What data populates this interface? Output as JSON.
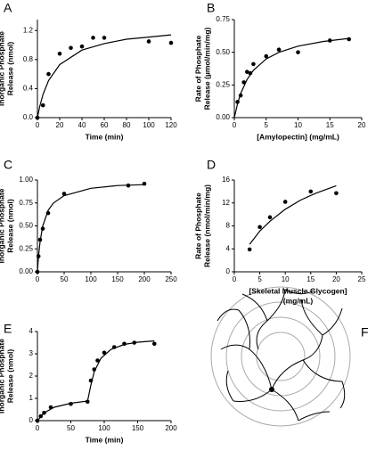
{
  "chart_data": [
    {
      "type": "scatter",
      "label": "A",
      "xlabel": [
        "Time (min)"
      ],
      "ylabel": [
        "Inorganic Phosphate",
        "Release (nmol)"
      ],
      "x": [
        0,
        5,
        10,
        20,
        30,
        40,
        50,
        60,
        100,
        120
      ],
      "values": [
        0,
        0.17,
        0.6,
        0.88,
        0.96,
        0.98,
        1.1,
        1.1,
        1.05,
        1.03
      ],
      "fit": {
        "x": [
          0,
          2,
          5,
          10,
          20,
          40,
          60,
          80,
          100,
          120
        ],
        "values": [
          0,
          0.15,
          0.32,
          0.51,
          0.73,
          0.93,
          1.02,
          1.08,
          1.11,
          1.14
        ]
      },
      "xlim": [
        0,
        120
      ],
      "ylim": [
        0,
        1.35
      ],
      "xticks": [
        0,
        20,
        40,
        60,
        80,
        100,
        120
      ],
      "yticks": [
        {
          "value": 0,
          "label": "0.0"
        },
        0.4,
        0.8,
        1.2
      ]
    },
    {
      "type": "scatter",
      "label": "B",
      "xlabel": [
        "[Amylopectin] (mg/mL)"
      ],
      "ylabel": [
        "Rate of Phosphate",
        "Release (µmol/min/mg)"
      ],
      "x": [
        0.5,
        1,
        1.5,
        2,
        2.5,
        3,
        5,
        7,
        10,
        15,
        18
      ],
      "values": [
        0.12,
        0.17,
        0.27,
        0.35,
        0.34,
        0.41,
        0.47,
        0.52,
        0.5,
        0.59,
        0.6
      ],
      "fit": {
        "x": [
          0,
          0.5,
          1,
          2,
          3,
          5,
          7,
          10,
          14,
          18
        ],
        "values": [
          0,
          0.106,
          0.184,
          0.292,
          0.362,
          0.449,
          0.5,
          0.547,
          0.583,
          0.606
        ]
      },
      "xlim": [
        0,
        20
      ],
      "ylim": [
        0,
        0.75
      ],
      "xticks": [
        0,
        5,
        10,
        15,
        20
      ],
      "yticks": [
        {
          "value": 0,
          "label": "0.00"
        },
        0.25,
        {
          "value": 0.5,
          "label": "0.50"
        },
        0.75
      ]
    },
    {
      "type": "scatter",
      "label": "C",
      "ylabel": [
        "Inorganic Phosphate",
        "Release (nmol)"
      ],
      "x": [
        0,
        2,
        5,
        10,
        20,
        50,
        170,
        200
      ],
      "values": [
        0,
        0.17,
        0.35,
        0.47,
        0.64,
        0.85,
        0.94,
        0.96
      ],
      "fit": {
        "x": [
          0,
          2,
          5,
          10,
          20,
          30,
          50,
          100,
          150,
          200
        ],
        "values": [
          0,
          0.17,
          0.33,
          0.5,
          0.67,
          0.75,
          0.83,
          0.91,
          0.94,
          0.95
        ]
      },
      "xlim": [
        0,
        250
      ],
      "ylim": [
        0,
        1.0
      ],
      "xticks": [
        0,
        50,
        100,
        150,
        200,
        250
      ],
      "yticks": [
        {
          "value": 0,
          "label": "0.00"
        },
        0.25,
        {
          "value": 0.5,
          "label": "0.50"
        },
        0.75,
        {
          "value": 1,
          "label": "1.00"
        }
      ]
    },
    {
      "type": "scatter",
      "label": "D",
      "xlabel": [
        "[Skeletal Muscle Glycogen]",
        "(mg/mL)"
      ],
      "ylabel": [
        "Rate of Phosphate",
        "Release (nmol/min/mg)"
      ],
      "x": [
        3,
        5,
        7,
        10,
        15,
        20
      ],
      "values": [
        3.9,
        7.8,
        9.5,
        12.2,
        14,
        13.7
      ],
      "fit": {
        "x": [
          3,
          5,
          7,
          10,
          13,
          16,
          20
        ],
        "values": [
          4.8,
          7.1,
          8.8,
          10.9,
          12.5,
          13.7,
          15
        ]
      },
      "xlim": [
        0,
        25
      ],
      "ylim": [
        0,
        16
      ],
      "xticks": [
        0,
        5,
        10,
        15,
        20,
        25
      ],
      "yticks": [
        0,
        4,
        8,
        12,
        16
      ]
    },
    {
      "type": "scatter",
      "label": "E",
      "xlabel": [
        "Time (min)"
      ],
      "ylabel": [
        "Inorganic Phosphate",
        "Release (nmol)"
      ],
      "x": [
        0,
        5,
        10,
        20,
        50,
        75,
        80,
        85,
        90,
        100,
        115,
        130,
        145,
        175
      ],
      "values": [
        0,
        0.2,
        0.35,
        0.6,
        0.75,
        0.85,
        1.8,
        2.3,
        2.7,
        3.05,
        3.3,
        3.45,
        3.5,
        3.45
      ],
      "fit": {
        "x": [
          0,
          10,
          25,
          50,
          75,
          80,
          85,
          95,
          110,
          130,
          150,
          175
        ],
        "values": [
          0,
          0.35,
          0.6,
          0.78,
          0.88,
          1.6,
          2.2,
          2.8,
          3.2,
          3.42,
          3.52,
          3.58
        ]
      },
      "xlim": [
        0,
        200
      ],
      "ylim": [
        0,
        4
      ],
      "xticks": [
        0,
        50,
        100,
        150,
        200
      ],
      "yticks": [
        0,
        1,
        2,
        3,
        4
      ]
    }
  ],
  "diagram": {
    "label": "F"
  }
}
